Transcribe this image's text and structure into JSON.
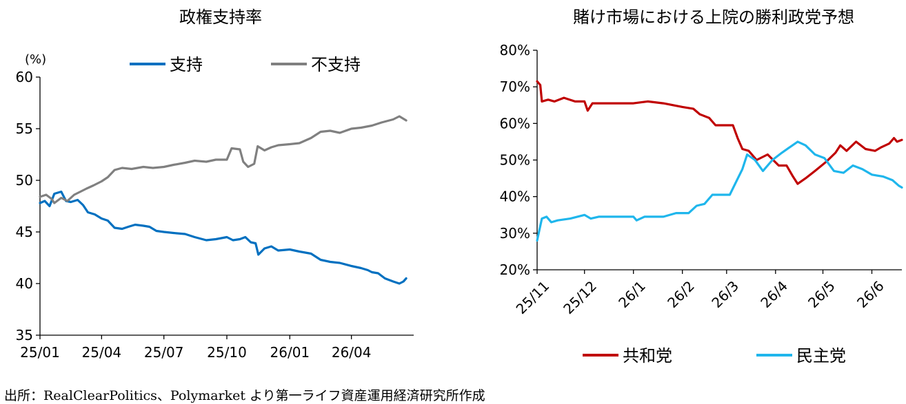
{
  "source_note": "出所：RealClearPolitics、Polymarket より第一ライフ資産運用経済研究所作成",
  "colors": {
    "support": "#0070C0",
    "disapprove": "#808080",
    "republican": "#C00000",
    "democrat": "#1FB6EC"
  },
  "chart_data": [
    {
      "type": "line",
      "title": "政権支持率",
      "ylabel": "(%)",
      "ylim": [
        35,
        60
      ],
      "yticks": [
        "35",
        "40",
        "45",
        "50",
        "55",
        "60"
      ],
      "xlim": [
        "2025-01-01",
        "2026-07-01"
      ],
      "xticks": [
        {
          "date": "2025-01-01",
          "label": "25/01"
        },
        {
          "date": "2025-04-01",
          "label": "25/04"
        },
        {
          "date": "2025-07-01",
          "label": "25/07"
        },
        {
          "date": "2025-10-01",
          "label": "25/10"
        },
        {
          "date": "2026-01-01",
          "label": "26/01"
        },
        {
          "date": "2026-04-01",
          "label": "26/04"
        }
      ],
      "legend": "top",
      "series": [
        {
          "name": "支持",
          "color": "#0070C0",
          "points": [
            [
              "2025-01-01",
              47.8
            ],
            [
              "2025-01-08",
              48.0
            ],
            [
              "2025-01-15",
              47.5
            ],
            [
              "2025-01-22",
              48.7
            ],
            [
              "2025-02-01",
              48.9
            ],
            [
              "2025-02-08",
              48.0
            ],
            [
              "2025-02-15",
              47.9
            ],
            [
              "2025-02-25",
              48.1
            ],
            [
              "2025-03-05",
              47.6
            ],
            [
              "2025-03-12",
              46.9
            ],
            [
              "2025-03-22",
              46.7
            ],
            [
              "2025-04-01",
              46.3
            ],
            [
              "2025-04-10",
              46.1
            ],
            [
              "2025-04-20",
              45.4
            ],
            [
              "2025-05-01",
              45.3
            ],
            [
              "2025-05-10",
              45.5
            ],
            [
              "2025-05-20",
              45.7
            ],
            [
              "2025-06-01",
              45.6
            ],
            [
              "2025-06-10",
              45.5
            ],
            [
              "2025-06-20",
              45.1
            ],
            [
              "2025-07-01",
              45.0
            ],
            [
              "2025-07-15",
              44.9
            ],
            [
              "2025-08-01",
              44.8
            ],
            [
              "2025-08-15",
              44.5
            ],
            [
              "2025-09-01",
              44.2
            ],
            [
              "2025-09-15",
              44.3
            ],
            [
              "2025-10-01",
              44.5
            ],
            [
              "2025-10-10",
              44.2
            ],
            [
              "2025-10-20",
              44.3
            ],
            [
              "2025-10-28",
              44.5
            ],
            [
              "2025-11-05",
              44.0
            ],
            [
              "2025-11-12",
              43.9
            ],
            [
              "2025-11-16",
              42.8
            ],
            [
              "2025-11-25",
              43.4
            ],
            [
              "2025-12-05",
              43.6
            ],
            [
              "2025-12-15",
              43.2
            ],
            [
              "2026-01-01",
              43.3
            ],
            [
              "2026-01-15",
              43.1
            ],
            [
              "2026-02-01",
              42.9
            ],
            [
              "2026-02-15",
              42.3
            ],
            [
              "2026-03-01",
              42.1
            ],
            [
              "2026-03-15",
              42.0
            ],
            [
              "2026-04-01",
              41.7
            ],
            [
              "2026-04-15",
              41.5
            ],
            [
              "2026-04-25",
              41.3
            ],
            [
              "2026-05-01",
              41.1
            ],
            [
              "2026-05-10",
              41.0
            ],
            [
              "2026-05-20",
              40.5
            ],
            [
              "2026-06-01",
              40.2
            ],
            [
              "2026-06-10",
              40.0
            ],
            [
              "2026-06-16",
              40.2
            ],
            [
              "2026-06-20",
              40.5
            ]
          ]
        },
        {
          "name": "不支持",
          "color": "#808080",
          "points": [
            [
              "2025-01-01",
              48.4
            ],
            [
              "2025-01-10",
              48.6
            ],
            [
              "2025-01-18",
              48.2
            ],
            [
              "2025-01-22",
              47.8
            ],
            [
              "2025-02-01",
              48.3
            ],
            [
              "2025-02-10",
              48.0
            ],
            [
              "2025-02-20",
              48.6
            ],
            [
              "2025-03-01",
              48.9
            ],
            [
              "2025-03-10",
              49.2
            ],
            [
              "2025-03-20",
              49.5
            ],
            [
              "2025-04-01",
              49.9
            ],
            [
              "2025-04-10",
              50.3
            ],
            [
              "2025-04-20",
              51.0
            ],
            [
              "2025-05-01",
              51.2
            ],
            [
              "2025-05-15",
              51.1
            ],
            [
              "2025-06-01",
              51.3
            ],
            [
              "2025-06-15",
              51.2
            ],
            [
              "2025-07-01",
              51.3
            ],
            [
              "2025-07-15",
              51.5
            ],
            [
              "2025-08-01",
              51.7
            ],
            [
              "2025-08-15",
              51.9
            ],
            [
              "2025-09-01",
              51.8
            ],
            [
              "2025-09-15",
              52.0
            ],
            [
              "2025-10-01",
              52.0
            ],
            [
              "2025-10-08",
              53.1
            ],
            [
              "2025-10-20",
              53.0
            ],
            [
              "2025-10-25",
              51.8
            ],
            [
              "2025-11-01",
              51.3
            ],
            [
              "2025-11-10",
              51.6
            ],
            [
              "2025-11-15",
              53.3
            ],
            [
              "2025-11-25",
              52.9
            ],
            [
              "2025-12-05",
              53.2
            ],
            [
              "2025-12-15",
              53.4
            ],
            [
              "2026-01-01",
              53.5
            ],
            [
              "2026-01-15",
              53.6
            ],
            [
              "2026-02-01",
              54.1
            ],
            [
              "2026-02-15",
              54.7
            ],
            [
              "2026-03-01",
              54.8
            ],
            [
              "2026-03-15",
              54.6
            ],
            [
              "2026-04-01",
              55.0
            ],
            [
              "2026-04-15",
              55.1
            ],
            [
              "2026-05-01",
              55.3
            ],
            [
              "2026-05-15",
              55.6
            ],
            [
              "2026-06-01",
              55.9
            ],
            [
              "2026-06-10",
              56.2
            ],
            [
              "2026-06-20",
              55.8
            ]
          ]
        }
      ]
    },
    {
      "type": "line",
      "title": "賭け市場における上院の勝利政党予想",
      "ylim": [
        20,
        80
      ],
      "yticks": [
        "20%",
        "30%",
        "40%",
        "50%",
        "60%",
        "70%",
        "80%"
      ],
      "xlim": [
        "2025-11-01",
        "2026-06-20"
      ],
      "xticks": [
        {
          "date": "2025-11-01",
          "label": "25/11"
        },
        {
          "date": "2025-12-01",
          "label": "25/12"
        },
        {
          "date": "2026-01-01",
          "label": "26/1"
        },
        {
          "date": "2026-02-01",
          "label": "26/2"
        },
        {
          "date": "2026-03-01",
          "label": "26/3"
        },
        {
          "date": "2026-04-01",
          "label": "26/4"
        },
        {
          "date": "2026-05-01",
          "label": "26/5"
        },
        {
          "date": "2026-06-01",
          "label": "26/6"
        }
      ],
      "legend": "bottom",
      "series": [
        {
          "name": "共和党",
          "color": "#C00000",
          "points": [
            [
              "2025-11-01",
              71.5
            ],
            [
              "2025-11-03",
              70.5
            ],
            [
              "2025-11-04",
              66.0
            ],
            [
              "2025-11-08",
              66.5
            ],
            [
              "2025-11-12",
              66.0
            ],
            [
              "2025-11-18",
              67.0
            ],
            [
              "2025-11-25",
              66.0
            ],
            [
              "2025-12-01",
              66.0
            ],
            [
              "2025-12-03",
              63.5
            ],
            [
              "2025-12-06",
              65.5
            ],
            [
              "2025-12-15",
              65.5
            ],
            [
              "2026-01-01",
              65.5
            ],
            [
              "2026-01-10",
              66.0
            ],
            [
              "2026-01-20",
              65.5
            ],
            [
              "2026-02-01",
              64.5
            ],
            [
              "2026-02-08",
              64.0
            ],
            [
              "2026-02-12",
              62.5
            ],
            [
              "2026-02-18",
              61.5
            ],
            [
              "2026-02-22",
              59.5
            ],
            [
              "2026-03-05",
              59.5
            ],
            [
              "2026-03-08",
              56.0
            ],
            [
              "2026-03-11",
              53.0
            ],
            [
              "2026-03-15",
              52.5
            ],
            [
              "2026-03-20",
              50.0
            ],
            [
              "2026-03-27",
              51.5
            ],
            [
              "2026-04-03",
              48.5
            ],
            [
              "2026-04-08",
              48.5
            ],
            [
              "2026-04-12",
              45.5
            ],
            [
              "2026-04-15",
              43.5
            ],
            [
              "2026-04-20",
              45.0
            ],
            [
              "2026-04-26",
              47.0
            ],
            [
              "2026-05-03",
              49.5
            ],
            [
              "2026-05-09",
              52.0
            ],
            [
              "2026-05-12",
              54.0
            ],
            [
              "2026-05-16",
              52.5
            ],
            [
              "2026-05-22",
              55.0
            ],
            [
              "2026-05-28",
              53.0
            ],
            [
              "2026-06-03",
              52.5
            ],
            [
              "2026-06-07",
              53.5
            ],
            [
              "2026-06-12",
              54.5
            ],
            [
              "2026-06-15",
              56.0
            ],
            [
              "2026-06-17",
              55.0
            ],
            [
              "2026-06-20",
              55.5
            ]
          ]
        },
        {
          "name": "民主党",
          "color": "#1FB6EC",
          "points": [
            [
              "2025-11-01",
              28.0
            ],
            [
              "2025-11-02",
              30.0
            ],
            [
              "2025-11-04",
              34.0
            ],
            [
              "2025-11-07",
              34.5
            ],
            [
              "2025-11-10",
              33.0
            ],
            [
              "2025-11-14",
              33.5
            ],
            [
              "2025-11-22",
              34.0
            ],
            [
              "2025-12-01",
              35.0
            ],
            [
              "2025-12-05",
              34.0
            ],
            [
              "2025-12-10",
              34.5
            ],
            [
              "2026-01-01",
              34.5
            ],
            [
              "2026-01-03",
              33.5
            ],
            [
              "2026-01-08",
              34.5
            ],
            [
              "2026-01-20",
              34.5
            ],
            [
              "2026-01-28",
              35.5
            ],
            [
              "2026-02-05",
              35.5
            ],
            [
              "2026-02-10",
              37.5
            ],
            [
              "2026-02-15",
              38.0
            ],
            [
              "2026-02-20",
              40.5
            ],
            [
              "2026-03-03",
              40.5
            ],
            [
              "2026-03-07",
              44.0
            ],
            [
              "2026-03-11",
              47.5
            ],
            [
              "2026-03-14",
              51.5
            ],
            [
              "2026-03-19",
              50.0
            ],
            [
              "2026-03-24",
              47.0
            ],
            [
              "2026-03-30",
              50.0
            ],
            [
              "2026-04-05",
              52.0
            ],
            [
              "2026-04-10",
              53.5
            ],
            [
              "2026-04-15",
              55.0
            ],
            [
              "2026-04-20",
              54.0
            ],
            [
              "2026-04-26",
              51.5
            ],
            [
              "2026-05-02",
              50.5
            ],
            [
              "2026-05-08",
              47.0
            ],
            [
              "2026-05-14",
              46.5
            ],
            [
              "2026-05-20",
              48.5
            ],
            [
              "2026-05-26",
              47.5
            ],
            [
              "2026-06-01",
              46.0
            ],
            [
              "2026-06-08",
              45.5
            ],
            [
              "2026-06-14",
              44.5
            ],
            [
              "2026-06-18",
              43.0
            ],
            [
              "2026-06-20",
              42.5
            ]
          ]
        }
      ]
    }
  ]
}
